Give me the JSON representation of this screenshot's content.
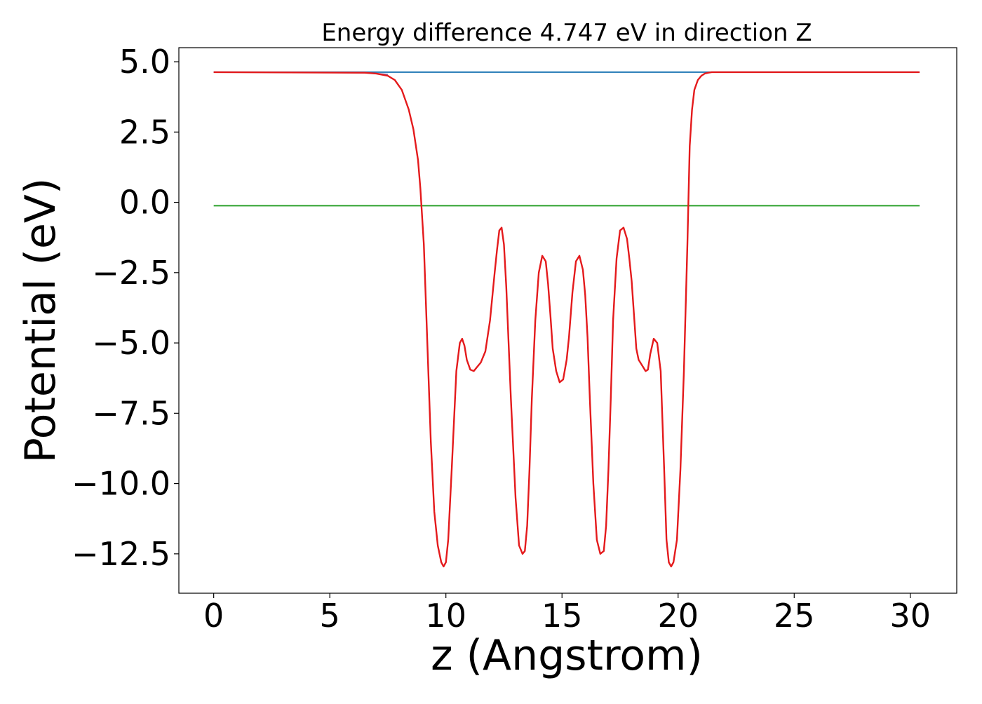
{
  "chart_data": {
    "type": "line",
    "title": "Energy difference 4.747 eV in direction Z",
    "xlabel": "z (Angstrom)",
    "ylabel": "Potential (eV)",
    "xlim": [
      -1.5,
      32
    ],
    "ylim": [
      -13.9,
      5.5
    ],
    "xticks": [
      0,
      5,
      10,
      15,
      20,
      25,
      30
    ],
    "xtick_labels": [
      "0",
      "5",
      "10",
      "15",
      "20",
      "25",
      "30"
    ],
    "yticks": [
      5.0,
      2.5,
      0.0,
      -2.5,
      -5.0,
      -7.5,
      -10.0,
      -12.5
    ],
    "ytick_labels": [
      "5.0",
      "2.5",
      "0.0",
      "−2.5",
      "−5.0",
      "−7.5",
      "−10.0",
      "−12.5"
    ],
    "grid": false,
    "legend": "none",
    "series": [
      {
        "color": "#1f77b4",
        "x": [
          0,
          30.4
        ],
        "y": [
          4.63,
          4.63
        ]
      },
      {
        "color": "#2ca02c",
        "x": [
          0,
          30.4
        ],
        "y": [
          -0.12,
          -0.12
        ]
      },
      {
        "color": "#7f7fbf",
        "x": [
          0,
          6.5,
          7.5
        ],
        "y": [
          4.63,
          4.61,
          4.55
        ]
      },
      {
        "color": "#e41a1c",
        "x": [
          0,
          6.5,
          7.0,
          7.5,
          7.8,
          8.1,
          8.4,
          8.6,
          8.8,
          8.9,
          9.05,
          9.2,
          9.35,
          9.5,
          9.65,
          9.8,
          9.9,
          10.0,
          10.1,
          10.25,
          10.45,
          10.6,
          10.7,
          10.8,
          10.9,
          11.05,
          11.2,
          11.35,
          11.5,
          11.7,
          11.9,
          12.1,
          12.2,
          12.3,
          12.4,
          12.5,
          12.6,
          12.8,
          13.0,
          13.15,
          13.3,
          13.4,
          13.5,
          13.6,
          13.7,
          13.85,
          14.0,
          14.15,
          14.3,
          14.4,
          14.5,
          14.6,
          14.75,
          14.9,
          15.05,
          15.2,
          15.3,
          15.45,
          15.6,
          15.75,
          15.9,
          16.0,
          16.1,
          16.2,
          16.35,
          16.5,
          16.65,
          16.8,
          16.9,
          17.0,
          17.1,
          17.2,
          17.35,
          17.5,
          17.65,
          17.8,
          17.9,
          18.0,
          18.1,
          18.2,
          18.3,
          18.45,
          18.6,
          18.7,
          18.8,
          18.95,
          19.1,
          19.25,
          19.4,
          19.5,
          19.6,
          19.7,
          19.8,
          19.95,
          20.1,
          20.25,
          20.4,
          20.5,
          20.6,
          20.7,
          20.85,
          21.0,
          21.15,
          21.3,
          21.45,
          21.6,
          21.75,
          21.9,
          22.2,
          22.6,
          23.0,
          23.5,
          24.0,
          25.0,
          30.4
        ],
        "y": [
          4.63,
          4.61,
          4.58,
          4.5,
          4.35,
          4.0,
          3.3,
          2.6,
          1.5,
          0.5,
          -1.5,
          -5.0,
          -8.5,
          -11.0,
          -12.2,
          -12.8,
          -12.95,
          -12.8,
          -12.0,
          -9.5,
          -6.0,
          -5.0,
          -4.85,
          -5.1,
          -5.6,
          -5.95,
          -6.0,
          -5.85,
          -5.7,
          -5.3,
          -4.2,
          -2.5,
          -1.7,
          -1.0,
          -0.9,
          -1.5,
          -3.0,
          -7.0,
          -10.5,
          -12.2,
          -12.5,
          -12.4,
          -11.5,
          -9.5,
          -7.0,
          -4.2,
          -2.5,
          -1.9,
          -2.1,
          -2.9,
          -4.0,
          -5.2,
          -6.0,
          -6.4,
          -6.3,
          -5.6,
          -4.8,
          -3.2,
          -2.1,
          -1.9,
          -2.4,
          -3.3,
          -4.8,
          -7.0,
          -10.0,
          -12.0,
          -12.5,
          -12.4,
          -11.5,
          -9.5,
          -7.0,
          -4.2,
          -2.0,
          -1.0,
          -0.9,
          -1.3,
          -2.0,
          -2.8,
          -4.0,
          -5.2,
          -5.6,
          -5.8,
          -6.0,
          -5.95,
          -5.4,
          -4.85,
          -5.0,
          -6.0,
          -9.5,
          -12.0,
          -12.8,
          -12.95,
          -12.8,
          -12.0,
          -9.5,
          -6.0,
          -1.5,
          2.0,
          3.3,
          4.0,
          4.35,
          4.5,
          4.58,
          4.61,
          4.63,
          4.63,
          4.63,
          4.63,
          4.63,
          4.63,
          4.63,
          4.63,
          4.63,
          4.63,
          4.63
        ]
      }
    ]
  }
}
